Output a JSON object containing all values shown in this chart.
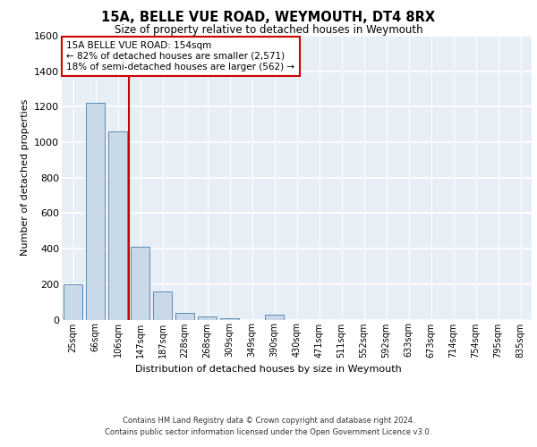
{
  "title": "15A, BELLE VUE ROAD, WEYMOUTH, DT4 8RX",
  "subtitle": "Size of property relative to detached houses in Weymouth",
  "xlabel": "Distribution of detached houses by size in Weymouth",
  "ylabel": "Number of detached properties",
  "bar_color": "#c9d9e8",
  "bar_edge_color": "#5a8db5",
  "background_color": "#e8eef5",
  "grid_color": "#ffffff",
  "categories": [
    "25sqm",
    "66sqm",
    "106sqm",
    "147sqm",
    "187sqm",
    "228sqm",
    "268sqm",
    "309sqm",
    "349sqm",
    "390sqm",
    "430sqm",
    "471sqm",
    "511sqm",
    "552sqm",
    "592sqm",
    "633sqm",
    "673sqm",
    "714sqm",
    "754sqm",
    "795sqm",
    "835sqm"
  ],
  "values": [
    200,
    1220,
    1060,
    410,
    160,
    40,
    18,
    10,
    0,
    30,
    0,
    0,
    0,
    0,
    0,
    0,
    0,
    0,
    0,
    0,
    0
  ],
  "ylim": [
    0,
    1600
  ],
  "yticks": [
    0,
    200,
    400,
    600,
    800,
    1000,
    1200,
    1400,
    1600
  ],
  "property_line_x": 2.5,
  "annotation_text": "15A BELLE VUE ROAD: 154sqm\n← 82% of detached houses are smaller (2,571)\n18% of semi-detached houses are larger (562) →",
  "annotation_box_color": "#ffffff",
  "annotation_box_edge": "#cc0000",
  "line_color": "#cc0000",
  "footer1": "Contains HM Land Registry data © Crown copyright and database right 2024.",
  "footer2": "Contains public sector information licensed under the Open Government Licence v3.0."
}
